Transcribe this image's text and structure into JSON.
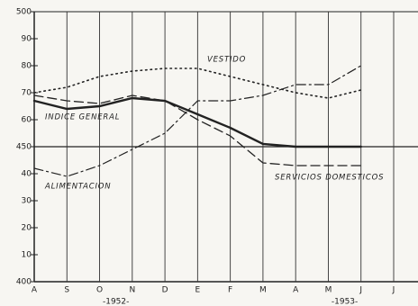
{
  "chart_data": {
    "type": "line",
    "categories": [
      "A",
      "S",
      "O",
      "N",
      "D",
      "E",
      "F",
      "M",
      "A",
      "M",
      "J",
      "J"
    ],
    "year_labels": [
      "-1952-",
      "-1953-"
    ],
    "ylim": [
      400,
      500
    ],
    "yticks": [
      {
        "value": 400,
        "label": "400"
      },
      {
        "value": 410,
        "label": "10"
      },
      {
        "value": 420,
        "label": "20"
      },
      {
        "value": 430,
        "label": "30"
      },
      {
        "value": 440,
        "label": "40"
      },
      450,
      {
        "value": 460,
        "label": "60"
      },
      {
        "value": 470,
        "label": "70"
      },
      {
        "value": 480,
        "label": "80"
      },
      {
        "value": 490,
        "label": "90"
      },
      500
    ],
    "reference_line": 450,
    "series": [
      {
        "name": "VESTIDO",
        "color": "#222222",
        "style": "dotted",
        "values": [
          470,
          472,
          476,
          478,
          479,
          479,
          476,
          473,
          470,
          468,
          471,
          null
        ]
      },
      {
        "name": "INDICE GENERAL",
        "color": "#222222",
        "style": "solid",
        "values": [
          467,
          464,
          465,
          468,
          467,
          462,
          457,
          451,
          450,
          450,
          450,
          null
        ]
      },
      {
        "name": "ALIMENTACION",
        "color": "#222222",
        "style": "dashed",
        "values": [
          469,
          467,
          466,
          469,
          467,
          460,
          454,
          444,
          443,
          443,
          443,
          null
        ]
      },
      {
        "name": "SERVICIOS DOMESTICOS",
        "color": "#222222",
        "style": "dashdot",
        "values": [
          442,
          439,
          443,
          449,
          455,
          467,
          467,
          469,
          473,
          473,
          480,
          null
        ]
      }
    ]
  }
}
